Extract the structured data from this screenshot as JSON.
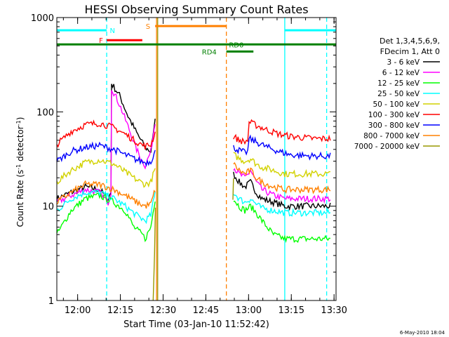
{
  "chart_data": {
    "type": "line",
    "title": "HESSI Observing Summary Count Rates",
    "xlabel": "Start Time (03-Jan-10 11:52:42)",
    "ylabel_main": "Count Rate (s",
    "ylabel_sup1": "-1",
    "ylabel_mid": " detector",
    "ylabel_sup2": "-1",
    "ylabel_end": ")",
    "y_scale": "log",
    "ylim": [
      1,
      1000
    ],
    "xlim_minutes": [
      0,
      98
    ],
    "x_ticks": [
      {
        "label": "12:00",
        "t": 7.3
      },
      {
        "label": "12:15",
        "t": 22.3
      },
      {
        "label": "12:30",
        "t": 37.3
      },
      {
        "label": "12:45",
        "t": 52.3
      },
      {
        "label": "13:00",
        "t": 67.3
      },
      {
        "label": "13:15",
        "t": 82.3
      },
      {
        "label": "13:30",
        "t": 97.3
      }
    ],
    "y_ticks": [
      {
        "label": "1",
        "v": 1
      },
      {
        "label": "10",
        "v": 10
      },
      {
        "label": "100",
        "v": 100
      },
      {
        "label": "1000",
        "v": 1000
      }
    ],
    "legend_header1": "Det 1,3,4,5,6,9,",
    "legend_header2": "FDecim 1, Att 0",
    "legend_placement": "right",
    "series": [
      {
        "name": "3 - 6 keV",
        "color": "#000000",
        "pts": [
          [
            0,
            12
          ],
          [
            5,
            14
          ],
          [
            10,
            16
          ],
          [
            15,
            15
          ],
          [
            18,
            12
          ],
          [
            19,
            14
          ],
          [
            19.2,
            200
          ],
          [
            22,
            150
          ],
          [
            25,
            90
          ],
          [
            28,
            60
          ],
          [
            31,
            42
          ],
          [
            33,
            38
          ],
          [
            34,
            60
          ],
          [
            34.5,
            90
          ],
          [
            35,
            0
          ],
          [
            61.5,
            0
          ],
          [
            62,
            22
          ],
          [
            64,
            18
          ],
          [
            66,
            16
          ],
          [
            68,
            18
          ],
          [
            70,
            14
          ],
          [
            72,
            12
          ],
          [
            76,
            11
          ],
          [
            80,
            10
          ],
          [
            90,
            10
          ],
          [
            96,
            10
          ]
        ]
      },
      {
        "name": "6 - 12 keV",
        "color": "#ff00ff",
        "pts": [
          [
            0,
            11
          ],
          [
            5,
            13
          ],
          [
            10,
            15
          ],
          [
            15,
            14
          ],
          [
            18,
            11
          ],
          [
            19,
            14
          ],
          [
            19.2,
            180
          ],
          [
            22,
            120
          ],
          [
            25,
            70
          ],
          [
            28,
            40
          ],
          [
            30,
            30
          ],
          [
            31,
            27
          ],
          [
            33,
            38
          ],
          [
            34.5,
            80
          ],
          [
            35,
            0
          ],
          [
            61.5,
            0
          ],
          [
            62,
            26
          ],
          [
            64,
            22
          ],
          [
            66,
            20
          ],
          [
            68,
            24
          ],
          [
            70,
            18
          ],
          [
            72,
            15
          ],
          [
            76,
            13
          ],
          [
            80,
            12
          ],
          [
            90,
            12
          ],
          [
            96,
            12
          ]
        ]
      },
      {
        "name": "12 - 25 keV",
        "color": "#00ff00",
        "pts": [
          [
            0,
            5
          ],
          [
            5,
            9
          ],
          [
            10,
            12
          ],
          [
            15,
            13
          ],
          [
            20,
            11
          ],
          [
            24,
            9
          ],
          [
            27,
            6
          ],
          [
            30,
            5
          ],
          [
            31,
            4.5
          ],
          [
            33,
            6
          ],
          [
            34.5,
            12
          ],
          [
            35,
            0
          ],
          [
            61.5,
            0
          ],
          [
            62,
            12
          ],
          [
            64,
            10
          ],
          [
            66,
            9
          ],
          [
            68,
            10
          ],
          [
            70,
            8.5
          ],
          [
            72,
            7
          ],
          [
            76,
            5
          ],
          [
            80,
            4.5
          ],
          [
            90,
            4.5
          ],
          [
            96,
            4.5
          ]
        ]
      },
      {
        "name": "25 - 50 keV",
        "color": "#00ffff",
        "pts": [
          [
            0,
            9
          ],
          [
            5,
            12
          ],
          [
            10,
            14
          ],
          [
            15,
            14
          ],
          [
            20,
            12
          ],
          [
            24,
            10
          ],
          [
            28,
            8
          ],
          [
            31,
            7
          ],
          [
            33,
            8
          ],
          [
            34.5,
            14
          ],
          [
            35,
            0
          ],
          [
            61.5,
            0
          ],
          [
            62,
            14
          ],
          [
            64,
            12
          ],
          [
            66,
            11
          ],
          [
            68,
            12
          ],
          [
            70,
            10.5
          ],
          [
            72,
            9.5
          ],
          [
            76,
            9
          ],
          [
            80,
            8.5
          ],
          [
            90,
            8.5
          ],
          [
            96,
            8.5
          ]
        ]
      },
      {
        "name": "50 - 100 keV",
        "color": "#d2d200",
        "pts": [
          [
            0,
            18
          ],
          [
            5,
            24
          ],
          [
            10,
            29
          ],
          [
            15,
            31
          ],
          [
            20,
            28
          ],
          [
            24,
            23
          ],
          [
            28,
            19
          ],
          [
            31,
            17
          ],
          [
            33,
            18
          ],
          [
            34.5,
            25
          ],
          [
            35,
            0
          ],
          [
            61.5,
            0
          ],
          [
            62,
            35
          ],
          [
            64,
            32
          ],
          [
            66,
            30
          ],
          [
            68,
            32
          ],
          [
            70,
            28
          ],
          [
            72,
            26
          ],
          [
            76,
            24
          ],
          [
            80,
            22
          ],
          [
            90,
            22
          ],
          [
            96,
            22
          ]
        ]
      },
      {
        "name": "100 - 300 keV",
        "color": "#ff0000",
        "pts": [
          [
            0,
            45
          ],
          [
            5,
            62
          ],
          [
            10,
            73
          ],
          [
            15,
            76
          ],
          [
            20,
            68
          ],
          [
            24,
            58
          ],
          [
            28,
            48
          ],
          [
            31,
            43
          ],
          [
            33,
            45
          ],
          [
            34.5,
            60
          ],
          [
            35,
            0
          ],
          [
            61.5,
            0
          ],
          [
            62,
            55
          ],
          [
            64,
            50
          ],
          [
            66,
            48
          ],
          [
            67,
            50
          ],
          [
            67.5,
            78
          ],
          [
            70,
            72
          ],
          [
            74,
            64
          ],
          [
            78,
            58
          ],
          [
            82,
            55
          ],
          [
            90,
            52
          ],
          [
            96,
            52
          ]
        ]
      },
      {
        "name": "300 - 800 keV",
        "color": "#0000ff",
        "pts": [
          [
            0,
            30
          ],
          [
            5,
            38
          ],
          [
            10,
            42
          ],
          [
            15,
            44
          ],
          [
            20,
            40
          ],
          [
            24,
            35
          ],
          [
            28,
            31
          ],
          [
            31,
            29
          ],
          [
            33,
            30
          ],
          [
            34.5,
            38
          ],
          [
            35,
            0
          ],
          [
            61.5,
            0
          ],
          [
            62,
            42
          ],
          [
            64,
            39
          ],
          [
            66,
            37
          ],
          [
            67,
            38
          ],
          [
            67.5,
            52
          ],
          [
            70,
            48
          ],
          [
            74,
            42
          ],
          [
            78,
            38
          ],
          [
            82,
            35
          ],
          [
            90,
            34
          ],
          [
            96,
            34
          ]
        ]
      },
      {
        "name": "800 - 7000 keV",
        "color": "#ff8000",
        "pts": [
          [
            0,
            11
          ],
          [
            5,
            14
          ],
          [
            10,
            17
          ],
          [
            15,
            17
          ],
          [
            20,
            15
          ],
          [
            24,
            13
          ],
          [
            28,
            11
          ],
          [
            31,
            10
          ],
          [
            33,
            10.5
          ],
          [
            34.5,
            15
          ],
          [
            35,
            0
          ],
          [
            61.5,
            0
          ],
          [
            62,
            28
          ],
          [
            64,
            24
          ],
          [
            66,
            22
          ],
          [
            68,
            24
          ],
          [
            70,
            20
          ],
          [
            72,
            18
          ],
          [
            76,
            16
          ],
          [
            80,
            15
          ],
          [
            90,
            15
          ],
          [
            96,
            15
          ]
        ]
      },
      {
        "name": "7000 - 20000 keV",
        "color": "#999900",
        "pts": [
          [
            33.8,
            1
          ],
          [
            34,
            1.6
          ],
          [
            34.3,
            3
          ],
          [
            34.6,
            10
          ],
          [
            35,
            0
          ],
          [
            61.5,
            0
          ],
          [
            61.8,
            12
          ],
          [
            62,
            20
          ]
        ]
      }
    ],
    "flags": [
      {
        "label": "N",
        "color": "#00ffff",
        "y": 0.955,
        "segs": [
          [
            0,
            17.5
          ],
          [
            80,
            98
          ]
        ],
        "label_t": 19.5
      },
      {
        "label": "F",
        "color": "#ff0000",
        "y": 0.92,
        "segs": [
          [
            17.5,
            30
          ]
        ],
        "label_t": 15.5
      },
      {
        "label": "S",
        "color": "#ff8000",
        "y": 0.97,
        "segs": [
          [
            34.5,
            59.5
          ]
        ],
        "label_t": 32
      },
      {
        "label": "RD0",
        "color": "#008000",
        "y": 0.905,
        "segs": [
          [
            0,
            98
          ]
        ],
        "label_t": 63
      },
      {
        "label": "RD4",
        "color": "#008000",
        "y": 0.88,
        "segs": [
          [
            59.5,
            69
          ]
        ],
        "label_t": 53.5
      }
    ],
    "vlines": [
      {
        "t": 17.5,
        "color": "#00ffff",
        "dash": true
      },
      {
        "t": 80,
        "color": "#00ffff",
        "dash": false
      },
      {
        "t": 94.7,
        "color": "#00ffff",
        "dash": true
      },
      {
        "t": 35,
        "color": "#ff8000",
        "dash": false
      },
      {
        "t": 35.4,
        "color": "#999900",
        "dash": false
      },
      {
        "t": 59.5,
        "color": "#ff8000",
        "dash": true
      }
    ],
    "footer_date": "6-May-2010 18:04"
  }
}
